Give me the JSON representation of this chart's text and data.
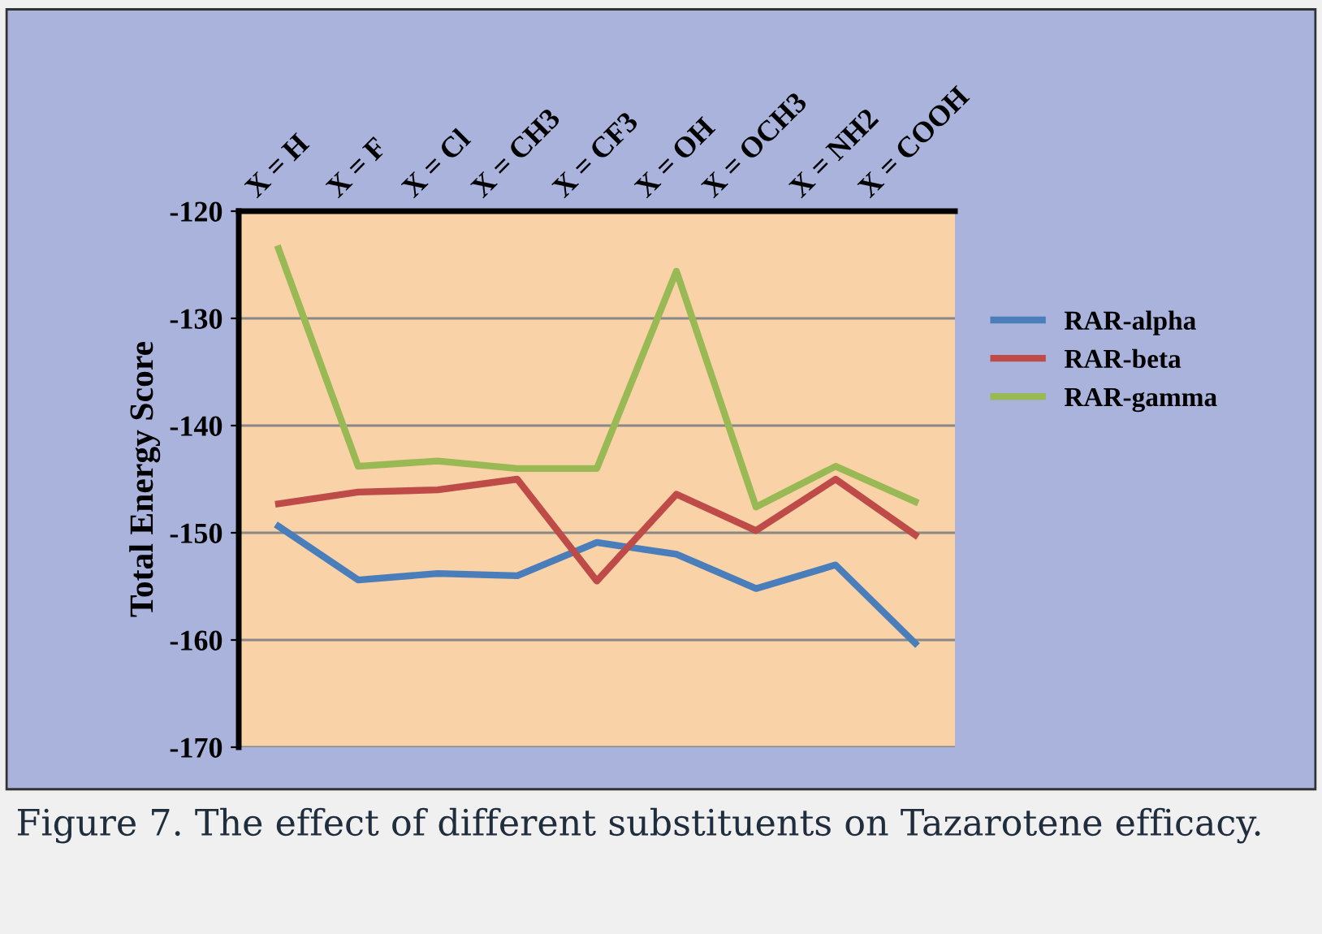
{
  "chart_data": {
    "type": "line",
    "ylabel": "Total Energy Score",
    "categories": [
      "X = H",
      "X = F",
      "X = Cl",
      "X = CH3",
      "X = CF3",
      "X = OH",
      "X = OCH3",
      "X = NH2",
      "X = COOH"
    ],
    "series": [
      {
        "name": "RAR-alpha",
        "color": "#4a7ebb",
        "values": [
          -149.4,
          -154.4,
          -153.8,
          -154,
          -150.9,
          -152,
          -155.2,
          -153,
          -160.3
        ]
      },
      {
        "name": "RAR-beta",
        "color": "#be4b48",
        "values": [
          -147.3,
          -146.2,
          -146,
          -145,
          -154.5,
          -146.4,
          -149.8,
          -145,
          -150.2
        ]
      },
      {
        "name": "RAR-gamma",
        "color": "#98b954",
        "values": [
          -123.5,
          -143.8,
          -143.3,
          -144,
          -144,
          -125.6,
          -147.6,
          -143.8,
          -147.1
        ]
      }
    ],
    "ylim": [
      -170,
      -120
    ],
    "yticks": [
      -170,
      -160,
      -150,
      -140,
      -130,
      -120
    ],
    "grid": "y",
    "legend": "right",
    "marker": "none",
    "line_style": "solid",
    "annotations": [
      "Figure 7. The effect of different substituents on Tazarotene efficacy."
    ]
  }
}
